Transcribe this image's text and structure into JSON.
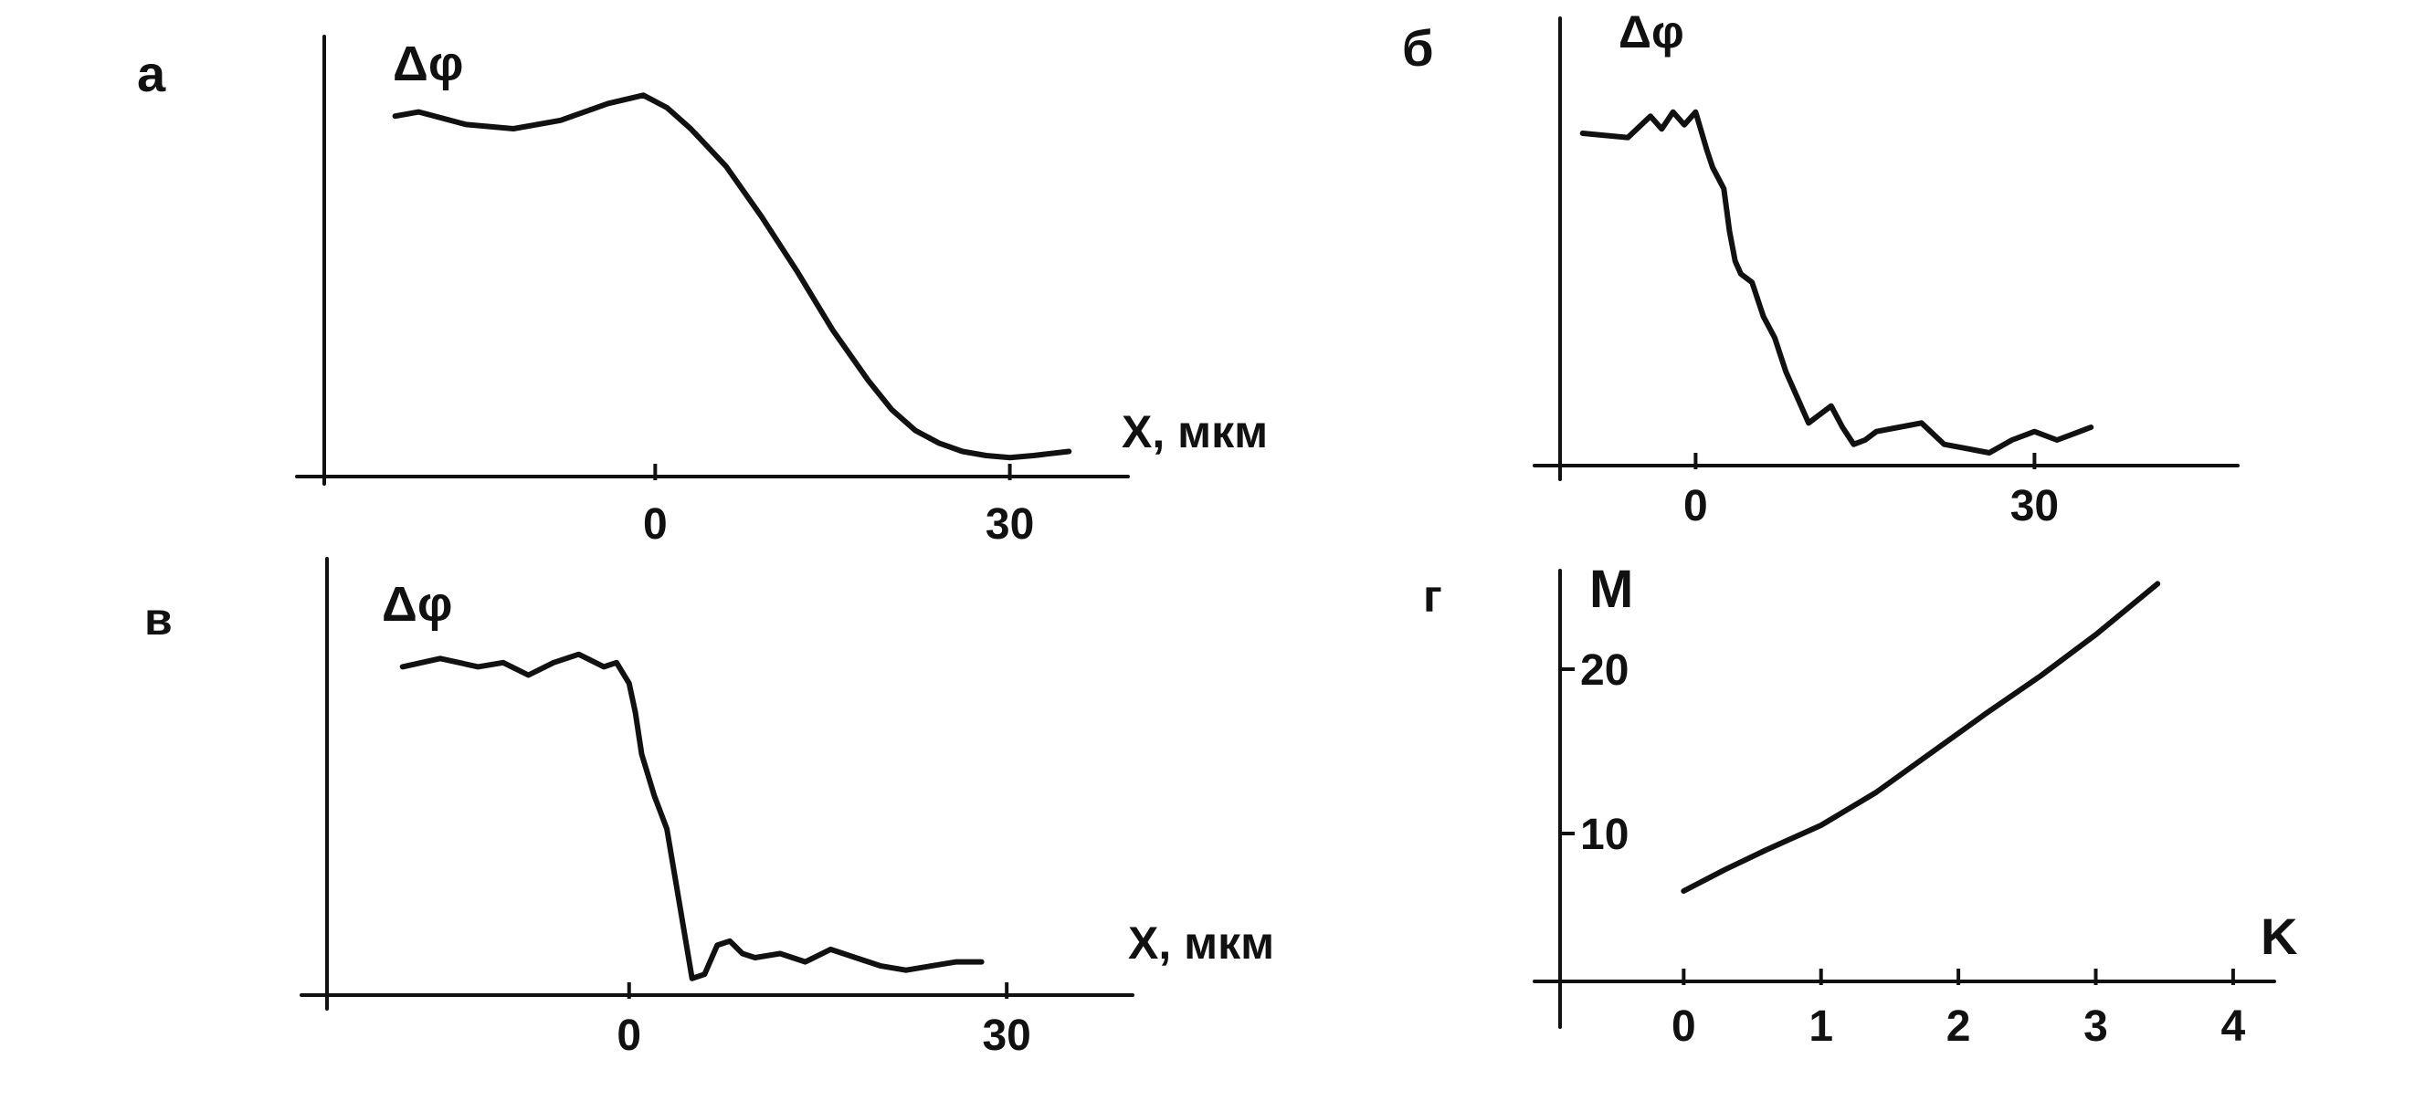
{
  "chart_data": [
    {
      "panel_label": "а",
      "type": "line",
      "ylabel": "Δφ",
      "xlabel": "X, мкм",
      "xticks": [
        "0",
        "30"
      ],
      "xlim": [
        -28,
        40
      ],
      "ylim": [
        0,
        1.05
      ],
      "series": [
        {
          "x": [
            -22,
            -20,
            -16,
            -12,
            -8,
            -4,
            -1,
            1,
            3,
            6,
            9,
            12,
            15,
            18,
            20,
            22,
            24,
            26,
            28,
            30,
            32,
            35
          ],
          "y": [
            0.86,
            0.87,
            0.84,
            0.83,
            0.85,
            0.89,
            0.91,
            0.88,
            0.83,
            0.74,
            0.62,
            0.49,
            0.35,
            0.23,
            0.16,
            0.11,
            0.08,
            0.06,
            0.05,
            0.045,
            0.05,
            0.06
          ]
        }
      ]
    },
    {
      "panel_label": "б",
      "type": "line",
      "ylabel": "Δφ",
      "xlabel": "",
      "xticks": [
        "0",
        "30"
      ],
      "xlim": [
        -12,
        48
      ],
      "ylim": [
        0,
        1.05
      ],
      "series": [
        {
          "x": [
            -10,
            -6,
            -4,
            -3,
            -2,
            -1,
            0,
            1,
            1.5,
            2.5,
            3,
            3.5,
            4,
            5,
            6,
            7,
            8,
            10,
            11,
            12,
            13,
            14,
            15,
            16,
            18,
            20,
            22,
            24,
            26,
            28,
            30,
            32,
            34,
            35
          ],
          "y": [
            0.78,
            0.77,
            0.82,
            0.79,
            0.83,
            0.8,
            0.83,
            0.74,
            0.7,
            0.65,
            0.55,
            0.48,
            0.45,
            0.43,
            0.35,
            0.3,
            0.22,
            0.1,
            0.12,
            0.14,
            0.09,
            0.05,
            0.06,
            0.08,
            0.09,
            0.1,
            0.05,
            0.04,
            0.03,
            0.06,
            0.08,
            0.06,
            0.08,
            0.09
          ]
        }
      ]
    },
    {
      "panel_label": "в",
      "type": "line",
      "ylabel": "Δφ",
      "xlabel": "X, мкм",
      "xticks": [
        "0",
        "30"
      ],
      "xlim": [
        -24,
        40
      ],
      "ylim": [
        0,
        1.05
      ],
      "series": [
        {
          "x": [
            -18,
            -15,
            -12,
            -10,
            -8,
            -6,
            -4,
            -2,
            -1,
            0,
            0.5,
            1,
            2,
            3,
            4,
            5,
            6,
            7,
            8,
            9,
            10,
            12,
            14,
            16,
            18,
            20,
            22,
            24,
            26,
            28
          ],
          "y": [
            0.79,
            0.81,
            0.79,
            0.8,
            0.77,
            0.8,
            0.82,
            0.79,
            0.8,
            0.75,
            0.68,
            0.58,
            0.48,
            0.4,
            0.22,
            0.04,
            0.05,
            0.12,
            0.13,
            0.1,
            0.09,
            0.1,
            0.08,
            0.11,
            0.09,
            0.07,
            0.06,
            0.07,
            0.08,
            0.08
          ]
        }
      ]
    },
    {
      "panel_label": "г",
      "type": "line",
      "ylabel": "M",
      "xlabel": "K",
      "xticks": [
        "0",
        "1",
        "2",
        "3",
        "4"
      ],
      "yticks": [
        "10",
        "20"
      ],
      "xlim": [
        -0.9,
        4.3
      ],
      "ylim": [
        1,
        26
      ],
      "series": [
        {
          "x": [
            0,
            0.3,
            0.6,
            1.0,
            1.4,
            1.8,
            2.2,
            2.6,
            3.0,
            3.45
          ],
          "y": [
            6.5,
            7.8,
            9.0,
            10.5,
            12.5,
            14.9,
            17.3,
            19.6,
            22.1,
            25.2
          ]
        }
      ]
    }
  ]
}
